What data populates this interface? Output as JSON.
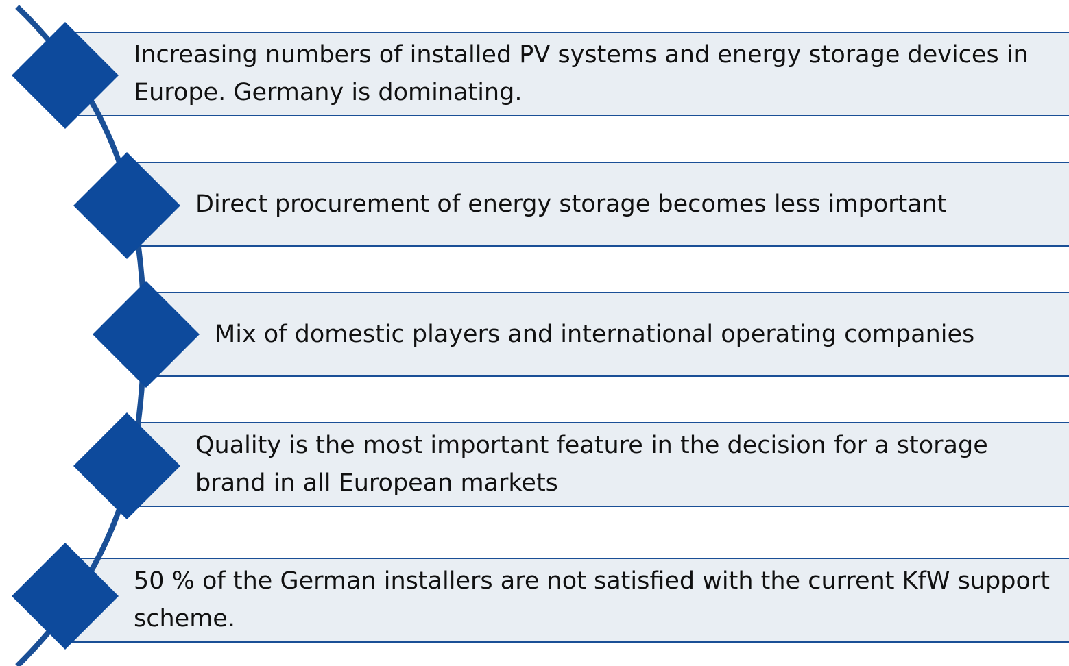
{
  "items": [
    {
      "text": "Increasing numbers of installed PV systems and energy storage devices in Europe. Germany is dominating."
    },
    {
      "text": "Direct procurement of energy storage becomes less important"
    },
    {
      "text": "Mix of domestic players and international operating companies"
    },
    {
      "text": "Quality is the most important feature in the decision for a storage brand in all European markets"
    },
    {
      "text": "50 % of the German installers are not satisfied with the current KfW support scheme."
    }
  ]
}
